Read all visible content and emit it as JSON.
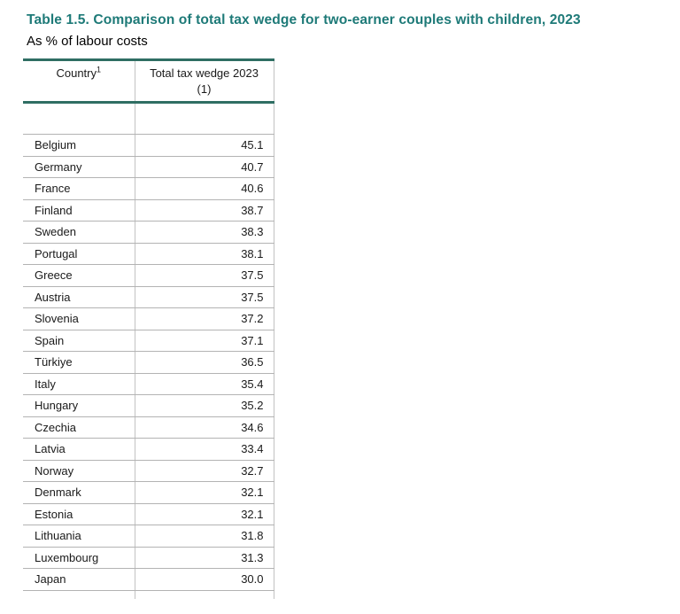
{
  "page": {
    "title": "Table 1.5. Comparison of total tax wedge for two-earner couples with children, 2023",
    "subtitle": "As % of labour costs"
  },
  "table": {
    "header": {
      "country_label": "Country",
      "country_superscript": "1",
      "value_label_line1": "Total tax wedge 2023",
      "value_label_line2": "(1)"
    },
    "rows": [
      {
        "country": "Belgium",
        "value": "45.1"
      },
      {
        "country": "Germany",
        "value": "40.7"
      },
      {
        "country": "France",
        "value": "40.6"
      },
      {
        "country": "Finland",
        "value": "38.7"
      },
      {
        "country": "Sweden",
        "value": "38.3"
      },
      {
        "country": "Portugal",
        "value": "38.1"
      },
      {
        "country": "Greece",
        "value": "37.5"
      },
      {
        "country": "Austria",
        "value": "37.5"
      },
      {
        "country": "Slovenia",
        "value": "37.2"
      },
      {
        "country": "Spain",
        "value": "37.1"
      },
      {
        "country": "Türkiye",
        "value": "36.5"
      },
      {
        "country": "Italy",
        "value": "35.4"
      },
      {
        "country": "Hungary",
        "value": "35.2"
      },
      {
        "country": "Czechia",
        "value": "34.6"
      },
      {
        "country": "Latvia",
        "value": "33.4"
      },
      {
        "country": "Norway",
        "value": "32.7"
      },
      {
        "country": "Denmark",
        "value": "32.1"
      },
      {
        "country": "Estonia",
        "value": "32.1"
      },
      {
        "country": "Lithuania",
        "value": "31.8"
      },
      {
        "country": "Luxembourg",
        "value": "31.3"
      },
      {
        "country": "Japan",
        "value": "30.0"
      }
    ]
  },
  "colors": {
    "title_teal": "#1e7a78",
    "table_border_teal": "#2f6e63",
    "row_line_gray": "#b3b3b3",
    "divider_gray": "#c2c2c2",
    "text_color": "#1a1a1a"
  }
}
